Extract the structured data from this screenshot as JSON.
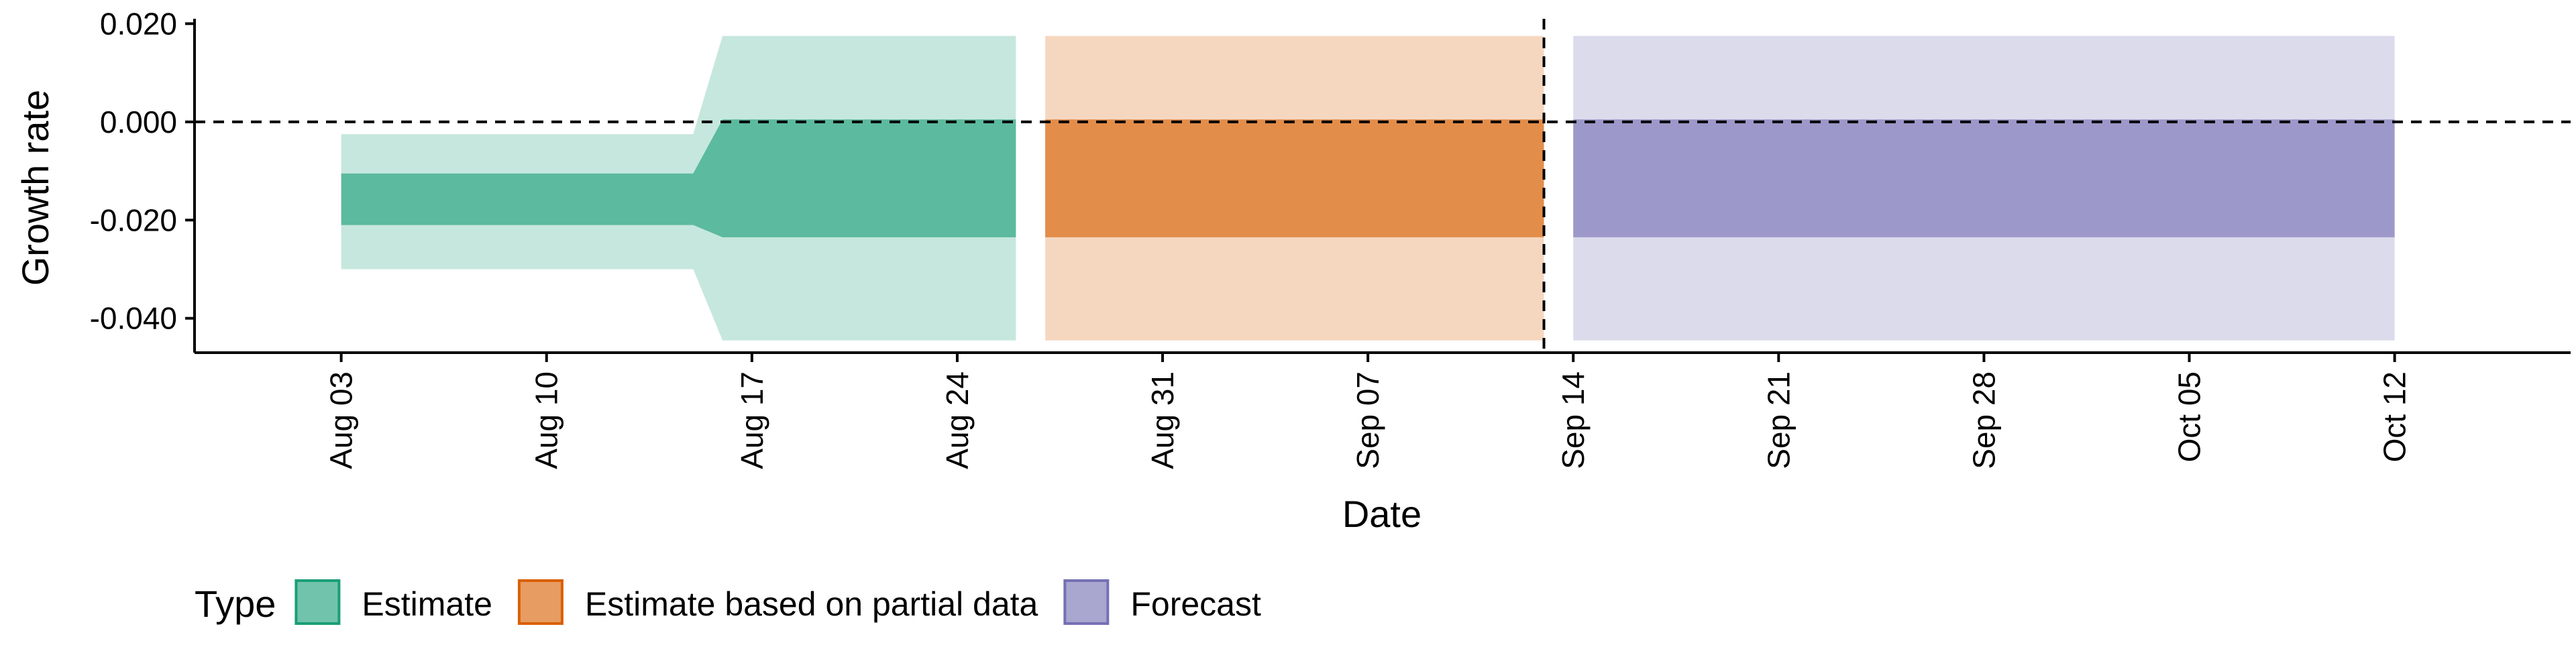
{
  "chart_data": {
    "type": "area",
    "title": "",
    "xlabel": "Date",
    "ylabel": "Growth rate",
    "x_axis": {
      "type": "date",
      "range": [
        "2020-07-29",
        "2020-10-18"
      ],
      "ticks": [
        "2020-08-03",
        "2020-08-10",
        "2020-08-17",
        "2020-08-24",
        "2020-08-31",
        "2020-09-07",
        "2020-09-14",
        "2020-09-21",
        "2020-09-28",
        "2020-10-05",
        "2020-10-12"
      ],
      "tick_labels": [
        "Aug 03",
        "Aug 10",
        "Aug 17",
        "Aug 24",
        "Aug 31",
        "Sep 07",
        "Sep 14",
        "Sep 21",
        "Sep 28",
        "Oct 05",
        "Oct 12"
      ]
    },
    "y_axis": {
      "range": [
        -0.047,
        0.021
      ],
      "ticks": [
        0.02,
        0.0,
        -0.02,
        -0.04
      ],
      "tick_labels": [
        "0.020",
        "0.000",
        "-0.020",
        "-0.040"
      ]
    },
    "reference_lines": {
      "horizontal_y": 0.0,
      "vertical_x": "2020-09-13"
    },
    "grid": false,
    "legend": {
      "position": "bottom-left",
      "title": "Type",
      "entries": [
        {
          "label": "Estimate",
          "fill": "#1b9e77",
          "stroke": "#1b9e77"
        },
        {
          "label": "Estimate based on partial data",
          "fill": "#d95f02",
          "stroke": "#d95f02"
        },
        {
          "label": "Forecast",
          "fill": "#7570b3",
          "stroke": "#7570b3"
        }
      ]
    },
    "inner_band_opacity": 0.62,
    "outer_band_opacity": 0.25,
    "series": [
      {
        "type": "Estimate",
        "color": "#1b9e77",
        "x": [
          "2020-08-03",
          "2020-08-15",
          "2020-08-16",
          "2020-08-26"
        ],
        "outer_lower": [
          -0.03,
          -0.03,
          -0.0445,
          -0.0445
        ],
        "outer_upper": [
          -0.0025,
          -0.0025,
          0.0175,
          0.0175
        ],
        "inner_lower": [
          -0.021,
          -0.021,
          -0.0235,
          -0.0235
        ],
        "inner_upper": [
          -0.0105,
          -0.0105,
          0.0005,
          0.0005
        ]
      },
      {
        "type": "Estimate based on partial data",
        "color": "#d95f02",
        "x": [
          "2020-08-27",
          "2020-09-13"
        ],
        "outer_lower": [
          -0.0445,
          -0.0445
        ],
        "outer_upper": [
          0.0175,
          0.0175
        ],
        "inner_lower": [
          -0.0235,
          -0.0235
        ],
        "inner_upper": [
          0.0005,
          0.0005
        ]
      },
      {
        "type": "Forecast",
        "color": "#7570b3",
        "x": [
          "2020-09-14",
          "2020-10-12"
        ],
        "outer_lower": [
          -0.0445,
          -0.0445
        ],
        "outer_upper": [
          0.0175,
          0.0175
        ],
        "inner_lower": [
          -0.0235,
          -0.0235
        ],
        "inner_upper": [
          0.0005,
          0.0005
        ]
      }
    ]
  }
}
